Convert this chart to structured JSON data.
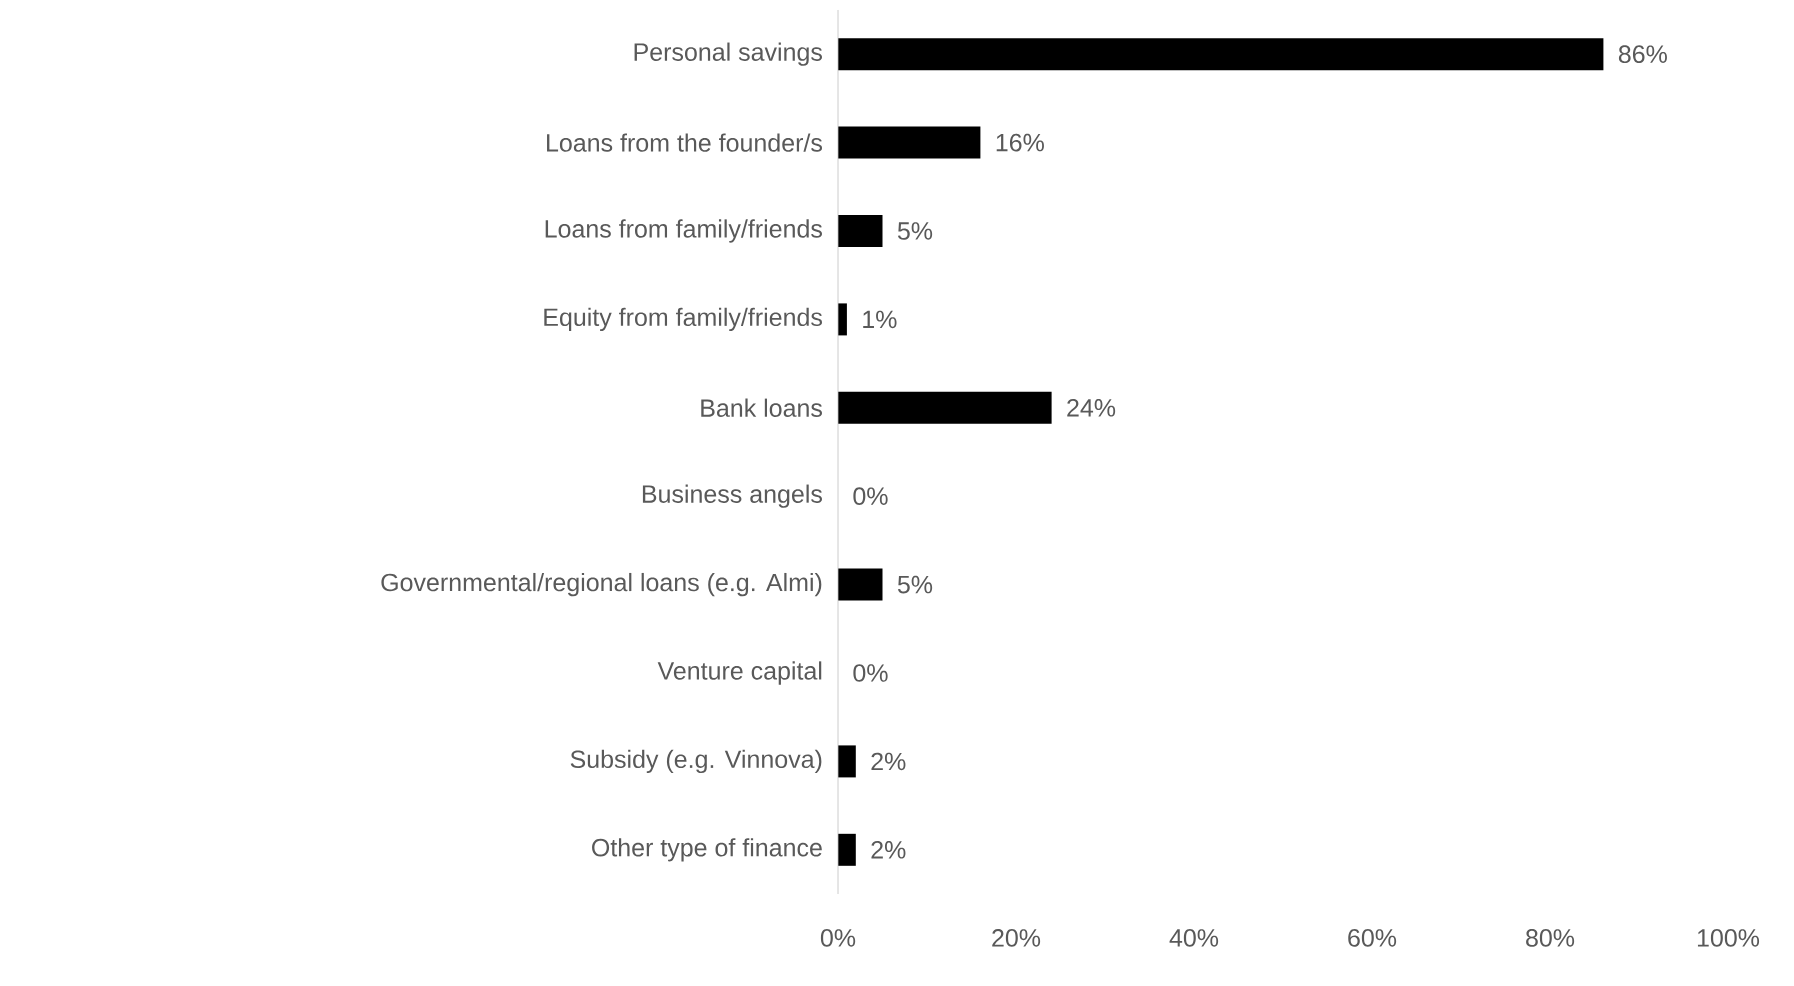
{
  "chart_data": {
    "type": "bar",
    "orientation": "horizontal",
    "categories": [
      "Personal savings",
      "Loans from the founder/s",
      "Loans from family/friends",
      "Equity from family/friends",
      "Bank loans",
      "Business angels",
      "Governmental/regional loans (e.g. Almi)",
      "Venture capital",
      "Subsidy (e.g. Vinnova)",
      "Other type of finance"
    ],
    "values": [
      86,
      16,
      5,
      1,
      24,
      0,
      5,
      0,
      2,
      2
    ],
    "value_labels": [
      "86%",
      "16%",
      "5%",
      "1%",
      "24%",
      "0%",
      "5%",
      "0%",
      "2%",
      "2%"
    ],
    "color": "#000000",
    "xlim": [
      0,
      100
    ],
    "xticks": [
      {
        "value": 0,
        "label": "0%"
      },
      {
        "value": 20,
        "label": "20%"
      },
      {
        "value": 40,
        "label": "40%"
      },
      {
        "value": 60,
        "label": "60%"
      },
      {
        "value": 80,
        "label": "80%"
      },
      {
        "value": 100,
        "label": "100%"
      }
    ]
  }
}
